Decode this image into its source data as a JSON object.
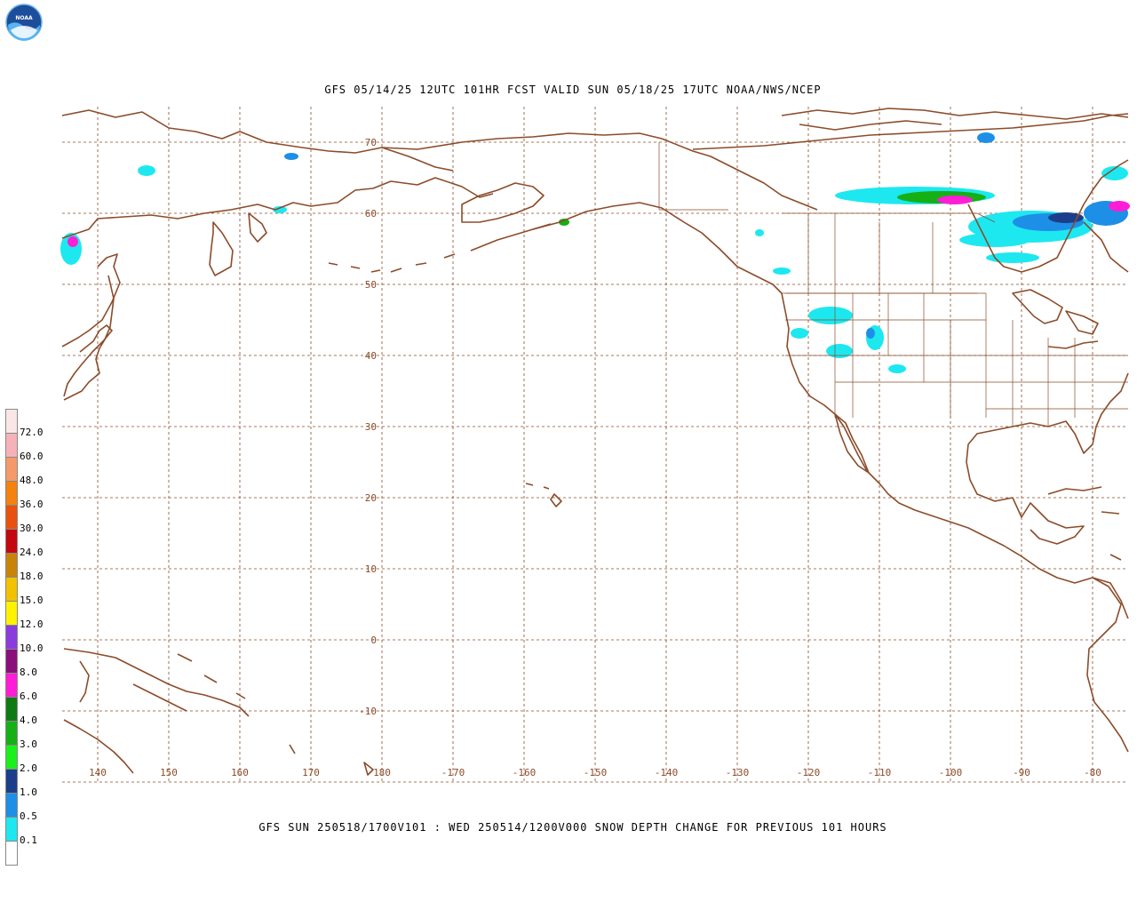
{
  "header": {
    "logo_text": "NOAA",
    "title": "GFS 05/14/25 12UTC 101HR FCST VALID SUN 05/18/25 17UTC NOAA/NWS/NCEP"
  },
  "footer": {
    "caption": "GFS SUN 250518/1700V101 : WED 250514/1200V000 SNOW DEPTH CHANGE FOR PREVIOUS 101 HOURS"
  },
  "map": {
    "projection": "cylindrical",
    "lon_range": [
      135,
      -75
    ],
    "lat_range": [
      -20,
      75
    ],
    "coastline_color": "#8b4c2a",
    "grid_color": "#8b4c2a",
    "lon_labels": [
      "140",
      "150",
      "160",
      "170",
      "180",
      "-170",
      "-160",
      "-150",
      "-140",
      "-130",
      "-120",
      "-110",
      "-100",
      "-90",
      "-80"
    ],
    "lat_labels": [
      "70",
      "60",
      "50",
      "40",
      "30",
      "20",
      "10",
      "0",
      "-10"
    ]
  },
  "legend": {
    "labels": [
      "72.0",
      "60.0",
      "48.0",
      "36.0",
      "30.0",
      "24.0",
      "18.0",
      "15.0",
      "12.0",
      "10.0",
      "8.0",
      "6.0",
      "4.0",
      "3.0",
      "2.0",
      "1.0",
      "0.5",
      "0.1"
    ],
    "colors": [
      "#fbe6e6",
      "#f6b2b8",
      "#f49a6a",
      "#f5820e",
      "#e8520e",
      "#c4080f",
      "#c8840a",
      "#f2c100",
      "#fff200",
      "#8a3cdc",
      "#8b0f7a",
      "#ff1dd6",
      "#0f7a14",
      "#16b016",
      "#1bf01b",
      "#1c3e8a",
      "#1e8fe6",
      "#1de8f0",
      "#ffffff"
    ]
  }
}
